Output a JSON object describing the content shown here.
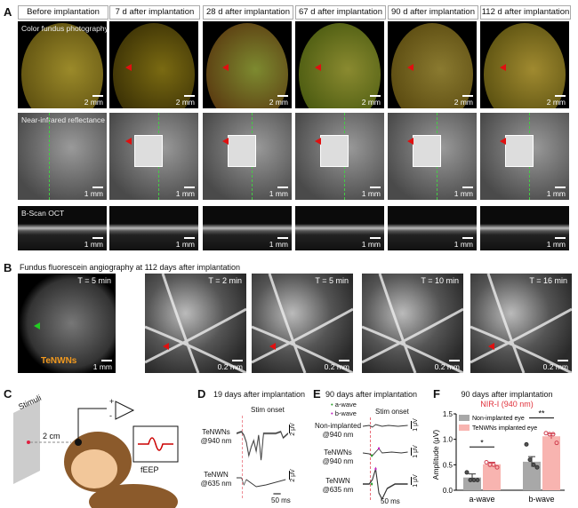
{
  "panelA": {
    "label": "A",
    "columns": [
      "Before implantation",
      "7 d after implantation",
      "28 d after implantation",
      "67 d after implantation",
      "90 d after implantation",
      "112 d after implantation"
    ],
    "rows": [
      {
        "label": "Color fundus photography",
        "scale": "2 mm"
      },
      {
        "label": "Near-infrared reflectance",
        "scale": "1 mm"
      },
      {
        "label": "B-Scan OCT",
        "scale": "1 mm"
      }
    ]
  },
  "panelB": {
    "label": "B",
    "title": "Fundus fluorescein angiography at 112 days after implantation",
    "overview": {
      "time": "T = 5 min",
      "marker": "TeNWNs",
      "scale": "1 mm"
    },
    "zooms": [
      {
        "time": "T = 2 min",
        "scale": "0.2 mm"
      },
      {
        "time": "T = 5 min",
        "scale": "0.2 mm"
      },
      {
        "time": "T = 10 min",
        "scale": "0.2 mm"
      },
      {
        "time": "T = 16 min",
        "scale": "0.2 mm"
      }
    ]
  },
  "panelC": {
    "label": "C",
    "stimuli": "Stimuli",
    "distance": "2 cm",
    "plus": "+",
    "minus": "-",
    "signal": "fEEP"
  },
  "panelD": {
    "label": "D",
    "title": "19 days after implantation",
    "stim": "Stim onset",
    "traces": [
      {
        "l1": "TeNWNs",
        "l2": "@940 nm",
        "scale": "2 μV"
      },
      {
        "l1": "TeNWN",
        "l2": "@635 nm",
        "scale": "2 μV"
      }
    ],
    "time_scale": "50 ms"
  },
  "panelE": {
    "label": "E",
    "title": "90 days after implantation",
    "legend": [
      "a-wave",
      "b-wave"
    ],
    "stim": "Stim onset",
    "traces": [
      {
        "l1": "Non-implanted",
        "l2": "@940 nm",
        "scale": "1 μV"
      },
      {
        "l1": "TeNWNs",
        "l2": "@940 nm",
        "scale": "1 μV"
      },
      {
        "l1": "TeNWN",
        "l2": "@635 nm",
        "scale": "1 μV"
      }
    ],
    "time_scale": "50 ms",
    "colors": {
      "a": "#2ca02c",
      "b": "#c020c0"
    }
  },
  "chart_data": {
    "type": "bar",
    "label": "F",
    "title": "90 days after implantation",
    "subtitle": "NIR-I (940 nm)",
    "ylabel": "Amplitude (μV)",
    "ylim": [
      0,
      1.5
    ],
    "yticks": [
      "0.0",
      "0.5",
      "1.0",
      "1.5"
    ],
    "categories": [
      "a-wave",
      "b-wave"
    ],
    "series": [
      {
        "name": "Non-implanted eye",
        "color": "#a8a8a8",
        "values": [
          0.25,
          0.56
        ],
        "errors": [
          0.07,
          0.1
        ],
        "points": [
          [
            0.35,
            0.2,
            0.2,
            0.2
          ],
          [
            0.9,
            0.6,
            0.5,
            0.45
          ]
        ]
      },
      {
        "name": "TeNWNs implanted eye",
        "color": "#f8b4b0",
        "values": [
          0.51,
          1.06
        ],
        "errors": [
          0.04,
          0.05
        ],
        "points": [
          [
            0.55,
            0.5,
            0.5,
            0.45
          ],
          [
            1.12,
            1.1,
            1.1,
            0.93
          ]
        ]
      }
    ],
    "significance": [
      "*",
      "**"
    ],
    "legend": "top-left"
  }
}
